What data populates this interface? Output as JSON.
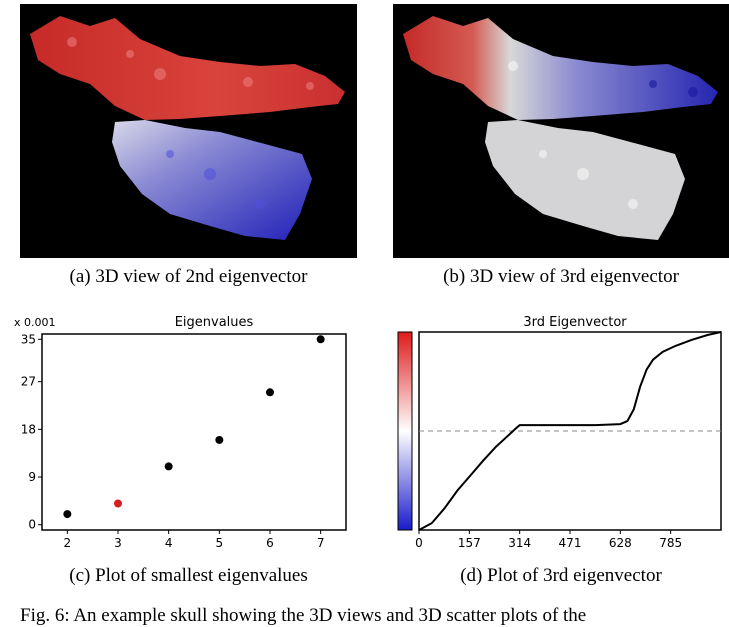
{
  "panels": {
    "a": {
      "caption": "(a) 3D view of 2nd eigenvector"
    },
    "b": {
      "caption": "(b) 3D view of 3rd eigenvector"
    },
    "c": {
      "caption": "(c) Plot of smallest eigenvalues"
    },
    "d": {
      "caption": "(d) Plot of 3rd eigenvector"
    }
  },
  "figure_caption": "Fig. 6: An example skull showing the 3D views and 3D scatter plots of the",
  "chart_data": [
    {
      "type": "scatter",
      "title": "Eigenvalues",
      "yscale_note": "x 0.001",
      "x": [
        2,
        3,
        4,
        5,
        6,
        7
      ],
      "y": [
        2,
        4,
        11,
        16,
        25,
        35
      ],
      "highlight_index": 1,
      "highlight_color": "#d62020",
      "point_color": "#000000",
      "xticks": [
        2,
        3,
        4,
        5,
        6,
        7
      ],
      "yticks": [
        0,
        9,
        18,
        27,
        35
      ],
      "xlim": [
        1.5,
        7.5
      ],
      "ylim": [
        -1,
        36
      ]
    },
    {
      "type": "line",
      "title": "3rd Eigenvector",
      "xticks": [
        0,
        157,
        314,
        471,
        628,
        785
      ],
      "xlim": [
        0,
        942
      ],
      "ylim": [
        -1,
        1
      ],
      "reference_line_y": 0,
      "colorbar": {
        "from": "#1a1acc",
        "mid": "#ffffff",
        "to": "#e01a1a"
      },
      "x": [
        0,
        40,
        80,
        120,
        160,
        200,
        240,
        280,
        300,
        314,
        330,
        400,
        471,
        550,
        628,
        650,
        670,
        690,
        710,
        730,
        760,
        800,
        850,
        900,
        942
      ],
      "y": [
        -1.0,
        -0.93,
        -0.78,
        -0.6,
        -0.45,
        -0.3,
        -0.16,
        -0.04,
        0.02,
        0.06,
        0.06,
        0.06,
        0.06,
        0.06,
        0.07,
        0.1,
        0.22,
        0.45,
        0.62,
        0.72,
        0.8,
        0.86,
        0.92,
        0.97,
        1.0
      ]
    }
  ]
}
